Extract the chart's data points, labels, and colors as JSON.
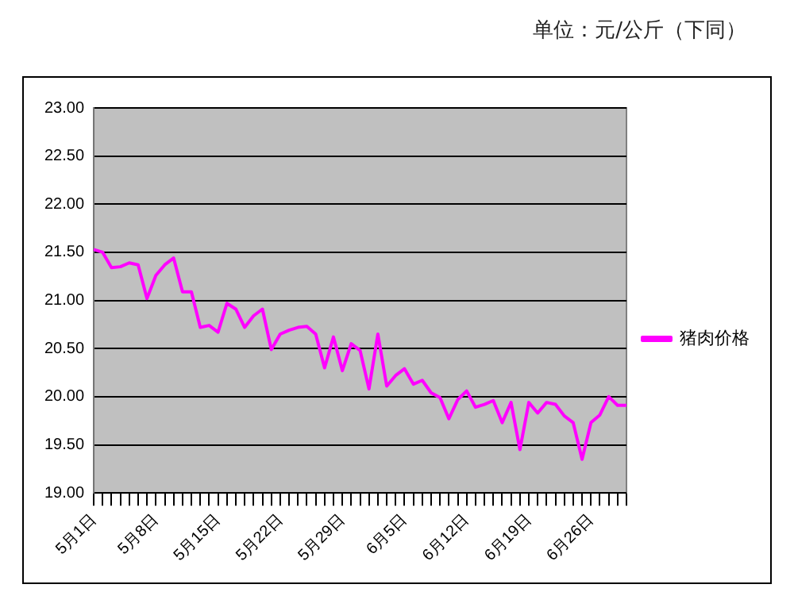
{
  "chart_data": {
    "type": "line",
    "annotations": [
      "单位：元/公斤（下同）"
    ],
    "categories": [
      "5月1日",
      null,
      null,
      null,
      null,
      null,
      null,
      "5月8日",
      null,
      null,
      null,
      null,
      null,
      null,
      "5月15日",
      null,
      null,
      null,
      null,
      null,
      null,
      "5月22日",
      null,
      null,
      null,
      null,
      null,
      null,
      "5月29日",
      null,
      null,
      null,
      null,
      null,
      null,
      "6月5日",
      null,
      null,
      null,
      null,
      null,
      null,
      "6月12日",
      null,
      null,
      null,
      null,
      null,
      null,
      "6月19日",
      null,
      null,
      null,
      null,
      null,
      null,
      "6月26日",
      null,
      null,
      null,
      null
    ],
    "series": [
      {
        "name": "猪肉价格",
        "color": "#ff00ff",
        "values": [
          21.53,
          21.5,
          21.34,
          21.35,
          21.39,
          21.37,
          21.02,
          21.26,
          21.37,
          21.44,
          21.09,
          21.09,
          20.72,
          20.74,
          20.67,
          20.97,
          20.91,
          20.72,
          20.84,
          20.91,
          20.49,
          20.65,
          20.69,
          20.72,
          20.73,
          20.65,
          20.3,
          20.62,
          20.27,
          20.55,
          20.48,
          20.08,
          20.65,
          20.11,
          20.22,
          20.29,
          20.13,
          20.17,
          20.04,
          19.99,
          19.77,
          19.97,
          20.06,
          19.89,
          19.92,
          19.96,
          19.73,
          19.94,
          19.45,
          19.94,
          19.83,
          19.94,
          19.92,
          19.8,
          19.73,
          19.35,
          19.73,
          19.81,
          20.0,
          19.91,
          19.91
        ]
      }
    ],
    "ylim": [
      19,
      23
    ],
    "yticks": [
      {
        "value": 19,
        "label": "19.00"
      },
      {
        "value": 19.5,
        "label": "19.50"
      },
      {
        "value": 20,
        "label": "20.00"
      },
      {
        "value": 20.5,
        "label": "20.50"
      },
      {
        "value": 21,
        "label": "21.00"
      },
      {
        "value": 21.5,
        "label": "21.50"
      },
      {
        "value": 22,
        "label": "22.00"
      },
      {
        "value": 22.5,
        "label": "22.50"
      },
      {
        "value": 23,
        "label": "23.00"
      }
    ],
    "grid": "y",
    "legend": "right",
    "marker": "none",
    "line_style": "solid"
  }
}
